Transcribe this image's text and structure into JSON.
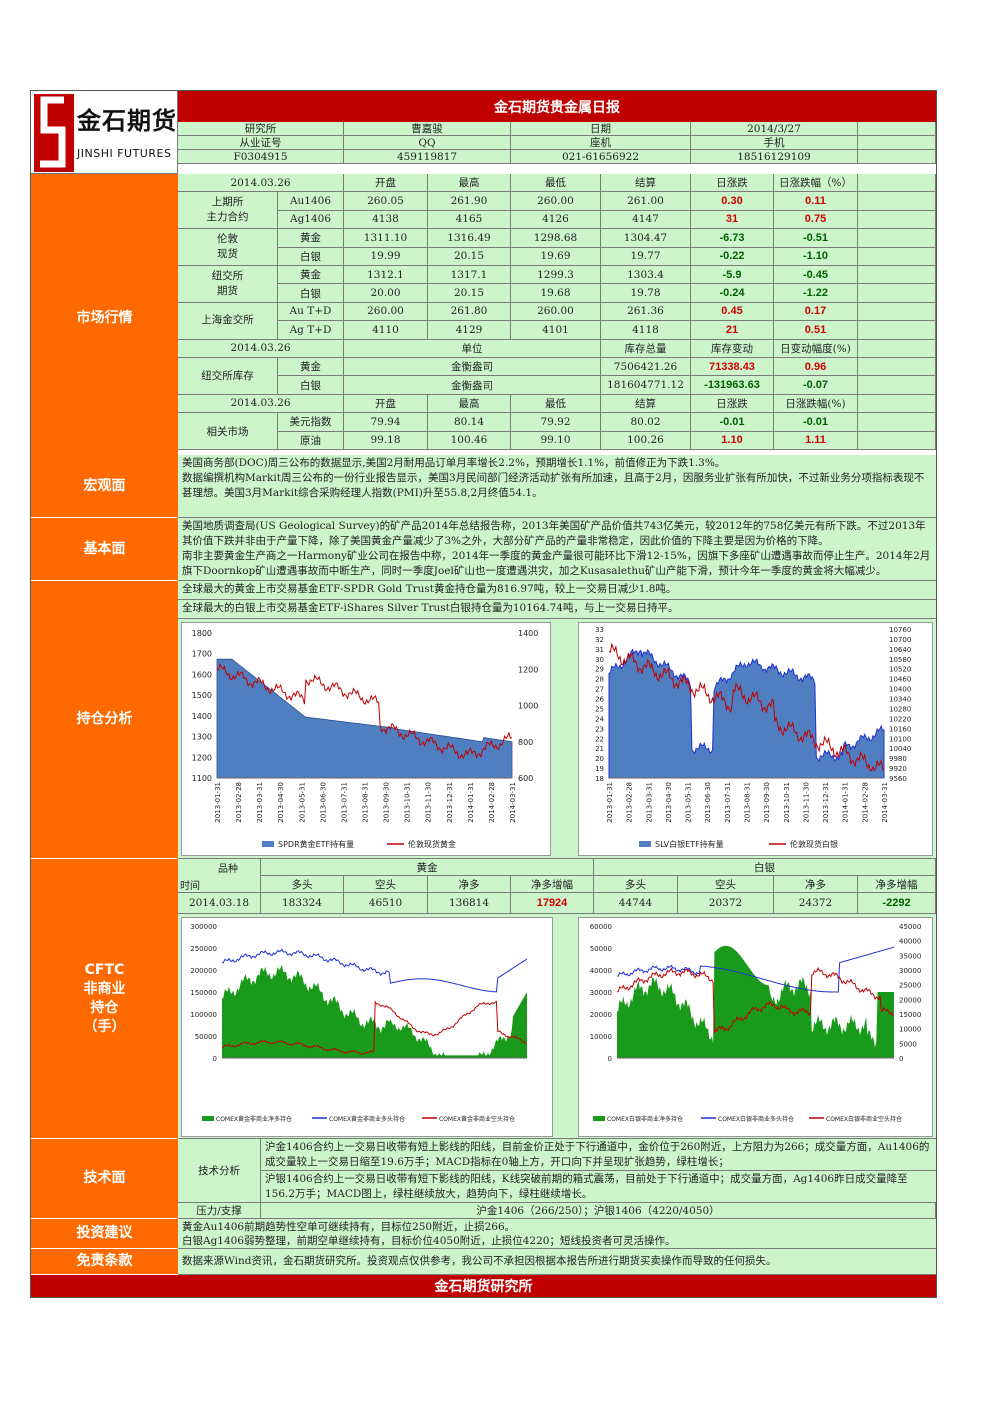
{
  "header": {
    "title": "金石期货贵金属日报",
    "logo_cn": "金石期货",
    "logo_en": "JINSHI FUTURES"
  },
  "info": [
    [
      "研究所",
      "曹嘉骏",
      "日期",
      "2014/3/27"
    ],
    [
      "从业证号",
      "QQ",
      "座机",
      "手机"
    ],
    [
      "F0304915",
      "459119817",
      "021-61656922",
      "18516129109"
    ]
  ],
  "market": {
    "section": "市场行情",
    "head1": [
      "2014.03.26",
      "",
      "开盘",
      "最高",
      "最低",
      "结算",
      "日涨跌",
      "日涨跌幅（%）"
    ],
    "groups": [
      {
        "name": "上期所\n主力合约",
        "rows": [
          [
            "Au1406",
            "260.05",
            "261.90",
            "260.00",
            "261.00",
            "0.30",
            "0.11"
          ],
          [
            "Ag1406",
            "4138",
            "4165",
            "4126",
            "4147",
            "31",
            "0.75"
          ]
        ]
      },
      {
        "name": "伦敦\n现货",
        "rows": [
          [
            "黄金",
            "1311.10",
            "1316.49",
            "1298.68",
            "1304.47",
            "-6.73",
            "-0.51"
          ],
          [
            "白银",
            "19.99",
            "20.15",
            "19.69",
            "19.77",
            "-0.22",
            "-1.10"
          ]
        ]
      },
      {
        "name": "纽交所\n期货",
        "rows": [
          [
            "黄金",
            "1312.1",
            "1317.1",
            "1299.3",
            "1303.4",
            "-5.9",
            "-0.45"
          ],
          [
            "白银",
            "20.00",
            "20.15",
            "19.68",
            "19.78",
            "-0.24",
            "-1.22"
          ]
        ]
      },
      {
        "name": "上海金交所",
        "rows": [
          [
            "Au T+D",
            "260.00",
            "261.80",
            "260.00",
            "261.36",
            "0.45",
            "0.17"
          ],
          [
            "Ag T+D",
            "4110",
            "4129",
            "4101",
            "4118",
            "21",
            "0.51"
          ]
        ]
      }
    ],
    "head2": [
      "2014.03.26",
      "单位",
      "库存总量",
      "库存变动",
      "日变动幅度(%)"
    ],
    "inv_name": "纽交所库存",
    "inv_rows": [
      [
        "黄金",
        "金衡盎司",
        "7506421.26",
        "71338.43",
        "0.96"
      ],
      [
        "白银",
        "金衡盎司",
        "181604771.12",
        "-131963.63",
        "-0.07"
      ]
    ],
    "head3": [
      "2014.03.26",
      "开盘",
      "最高",
      "最低",
      "结算",
      "日涨跌",
      "日涨跌幅(%)"
    ],
    "rel_name": "相关市场",
    "rel_rows": [
      [
        "美元指数",
        "79.94",
        "80.14",
        "79.92",
        "80.02",
        "-0.01",
        "-0.01"
      ],
      [
        "原油",
        "99.18",
        "100.46",
        "99.10",
        "100.26",
        "1.10",
        "1.11"
      ]
    ]
  },
  "macro": {
    "section": "宏观面",
    "text": "美国商务部(DOC)周三公布的数据显示,美国2月耐用品订单月率增长2.2%，预期增长1.1%，前值修正为下跌1.3%。\n数据编撰机构Markit周三公布的一份行业报告显示，美国3月民间部门经济活动扩张有所加速，且高于2月，因服务业扩张有所加快，不过新业务分项指标表现不甚理想。美国3月Markit综合采购经理人指数(PMI)升至55.8,2月终值54.1。"
  },
  "fund": {
    "section": "基本面",
    "text": "美国地质调查局(US Geological Survey)的矿产品2014年总结报告称，2013年美国矿产品价值共743亿美元，较2012年的758亿美元有所下跌。不过2013年其价值下跌并非由于产量下降，除了美国黄金产量减少了3%之外，大部分矿产品的产量非常稳定，因此价值的下降主要是因为价格的下降。\n南非主要黄金生产商之一Harmony矿业公司在报告中称，2014年一季度的黄金产量很可能环比下滑12-15%，因旗下多座矿山遭遇事故而停止生产。2014年2月旗下Doornkop矿山遭遇事故而中断生产，同时一季度Joel矿山也一度遭遇洪灾，加之Kusasalethu矿山产能下滑，预计今年一季度的黄金将大幅减少。"
  },
  "position": {
    "section": "持仓分析",
    "gold": "全球最大的黄金上市交易基金ETF-SPDR Gold Trust黄金持仓量为816.97吨，较上一交易日减少1.8吨。",
    "silver": "全球最大的白银上市交易基金ETF-iShares Silver Trust白银持仓量为10164.74吨，与上一交易日持平。",
    "chart1": {
      "left_ticks": [
        "1800",
        "1700",
        "1600",
        "1500",
        "1400",
        "1300",
        "1200",
        "1100"
      ],
      "right_ticks": [
        "1400",
        "1200",
        "1000",
        "800",
        "600"
      ],
      "legend": [
        "SPDR黄金ETF持有量",
        "伦敦现货黄金"
      ]
    },
    "chart2": {
      "left_ticks": [
        "33",
        "32",
        "31",
        "30",
        "29",
        "28",
        "27",
        "26",
        "25",
        "24",
        "23",
        "22",
        "21",
        "20",
        "19",
        "18"
      ],
      "right_ticks": [
        "10760",
        "10700",
        "10640",
        "10580",
        "10520",
        "10460",
        "10400",
        "10340",
        "10280",
        "10220",
        "10160",
        "10100",
        "10040",
        "9980",
        "9920",
        "9560"
      ],
      "legend": [
        "SLV白银ETF持有量",
        "伦敦现货白银"
      ]
    },
    "xdates": [
      "2013-01-31",
      "2013-02-28",
      "2013-03-31",
      "2013-04-30",
      "2013-05-31",
      "2013-06-30",
      "2013-07-31",
      "2013-08-31",
      "2013-09-30",
      "2013-10-31",
      "2013-11-30",
      "2013-12-31",
      "2014-01-31",
      "2014-02-28",
      "2014-03-31"
    ]
  },
  "cftc": {
    "section": "CFTC\n非商业\n持仓\n（手）",
    "variety": "品种",
    "time": "时间",
    "gold": "黄金",
    "silver": "白银",
    "cols": [
      "多头",
      "空头",
      "净多",
      "净多增幅",
      "多头",
      "空头",
      "净多",
      "净多增幅"
    ],
    "date": "2014.03.18",
    "values": [
      "183324",
      "46510",
      "136814",
      "17924",
      "44744",
      "20372",
      "24372",
      "-2292"
    ],
    "chart1": {
      "ticks": [
        "300000",
        "250000",
        "200000",
        "150000",
        "100000",
        "50000",
        "0"
      ],
      "legend": [
        "COMEX黄金非商业净多持仓",
        "COMEX黄金非商业多头持仓",
        "COMEX黄金非商业空头持仓"
      ]
    },
    "chart2": {
      "ticks": [
        "60000",
        "50000",
        "40000",
        "30000",
        "20000",
        "10000",
        "0"
      ],
      "right_ticks": [
        "45000",
        "40000",
        "35000",
        "30000",
        "25000",
        "20000",
        "15000",
        "10000",
        "5000",
        "0"
      ],
      "legend": [
        "COMEX白银非商业净多持仓",
        "COMEX白银非商业多头持仓",
        "COMEX白银非商业空头持仓"
      ]
    }
  },
  "tech": {
    "section": "技术面",
    "label": "技术分析",
    "text1": "沪金1406合约上一交易日收带有短上影线的阳线，目前金价正处于下行通道中，金价位于260附近，上方阻力为266；成交量方面，Au1406的成交量较上一交易日缩至19.6万手；MACD指标在0轴上方，开口向下并呈现扩张趋势，绿柱增长；",
    "text2": "沪银1406合约上一交易日收带有短下影线的阳线，K线突破前期的箱式震荡，目前处于下行通道中；成交量方面，Ag1406昨日成交量降至156.2万手；MACD图上，绿柱继续放大，趋势向下，绿柱继续增长。",
    "sr_label": "压力/支撑",
    "sr_text": "沪金1406（266/250）；沪银1406（4220/4050）"
  },
  "advice": {
    "section": "投资建议",
    "text": "黄金Au1406前期趋势性空单可继续持有，目标位250附近，止损266。\n白银Ag1406弱势整理，前期空单继续持有，目标价位4050附近，止损位4220；短线投资者可灵活操作。"
  },
  "disclaimer": {
    "section": "免责条款",
    "text": "数据来源Wind资讯，金石期货研究所。投资观点仅供参考，我公司不承担因根据本报告所进行期货买卖操作而导致的任何损失。"
  },
  "footer": {
    "text": "金石期货研究所"
  },
  "colors": {
    "header": "#c00000",
    "section": "#ff6a00",
    "cell": "#ccf5cc",
    "area_blue": "#4f7fc0",
    "line_red": "#c00000",
    "area_green": "#1a9a1a",
    "line_blue": "#1f2fd0"
  }
}
